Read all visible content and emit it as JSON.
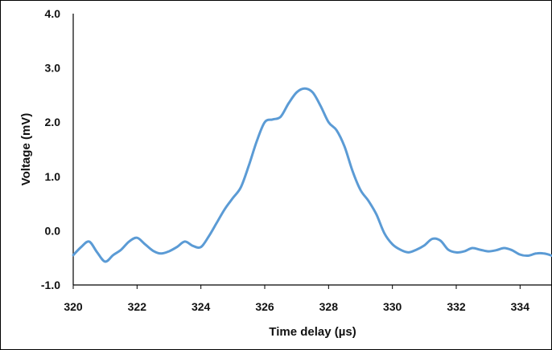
{
  "chart_data": {
    "type": "line",
    "title": "",
    "xlabel": "Time delay (µs)",
    "ylabel": "Voltage (mV)",
    "xlim": [
      320,
      335
    ],
    "ylim": [
      -1.0,
      4.0
    ],
    "grid": false,
    "x_ticks": [
      "320",
      "322",
      "324",
      "326",
      "328",
      "330",
      "332",
      "334"
    ],
    "y_ticks": [
      "-1.0",
      "0.0",
      "1.0",
      "2.0",
      "3.0",
      "4.0"
    ],
    "series": [
      {
        "color": "#5b9bd5",
        "x": [
          320.0,
          320.25,
          320.5,
          320.75,
          321.0,
          321.25,
          321.5,
          321.75,
          322.0,
          322.25,
          322.5,
          322.75,
          323.0,
          323.25,
          323.5,
          323.75,
          324.0,
          324.25,
          324.5,
          324.75,
          325.0,
          325.25,
          325.5,
          325.75,
          326.0,
          326.25,
          326.5,
          326.75,
          327.0,
          327.25,
          327.5,
          327.75,
          328.0,
          328.25,
          328.5,
          328.75,
          329.0,
          329.25,
          329.5,
          329.75,
          330.0,
          330.25,
          330.5,
          330.75,
          331.0,
          331.25,
          331.5,
          331.75,
          332.0,
          332.25,
          332.5,
          332.75,
          333.0,
          333.25,
          333.5,
          333.75,
          334.0,
          334.25,
          334.5,
          334.75,
          335.0
        ],
        "y": [
          -0.45,
          -0.3,
          -0.2,
          -0.4,
          -0.57,
          -0.45,
          -0.35,
          -0.2,
          -0.13,
          -0.25,
          -0.37,
          -0.42,
          -0.38,
          -0.3,
          -0.2,
          -0.28,
          -0.3,
          -0.1,
          0.15,
          0.4,
          0.6,
          0.8,
          1.2,
          1.65,
          2.0,
          2.05,
          2.1,
          2.35,
          2.55,
          2.62,
          2.55,
          2.3,
          2.0,
          1.85,
          1.55,
          1.1,
          0.75,
          0.55,
          0.3,
          -0.05,
          -0.25,
          -0.35,
          -0.4,
          -0.35,
          -0.27,
          -0.15,
          -0.18,
          -0.35,
          -0.4,
          -0.38,
          -0.32,
          -0.35,
          -0.38,
          -0.36,
          -0.32,
          -0.36,
          -0.44,
          -0.46,
          -0.42,
          -0.42,
          -0.46
        ]
      }
    ]
  }
}
